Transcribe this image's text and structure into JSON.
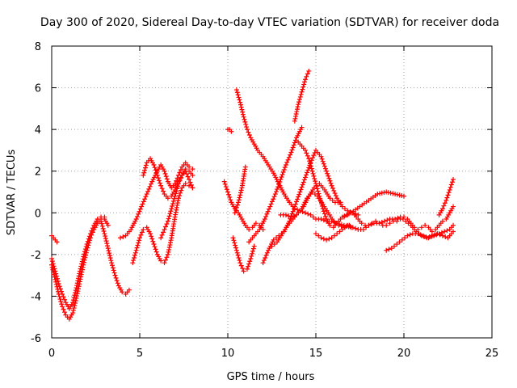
{
  "chart_data": {
    "type": "scatter",
    "title": "Day 300 of 2020, Sidereal Day-to-day VTEC variation (SDTVAR) for receiver doda",
    "xlabel": "GPS time / hours",
    "ylabel": "SDTVAR / TECUs",
    "xlim": [
      0,
      25
    ],
    "ylim": [
      -6,
      8
    ],
    "xticks": [
      0,
      5,
      10,
      15,
      20,
      25
    ],
    "yticks": [
      -6,
      -4,
      -2,
      0,
      2,
      4,
      6,
      8
    ],
    "xtick_labels": [
      "0",
      "5",
      "10",
      "15",
      "20",
      "25"
    ],
    "ytick_labels": [
      "-6",
      "-4",
      "-2",
      "0",
      "2",
      "4",
      "6",
      "8"
    ],
    "grid": true,
    "marker": "+",
    "color": "#ff0000",
    "series": [
      {
        "name": "trace-1",
        "x": [
          0.0,
          0.2,
          0.4,
          0.6,
          0.8,
          1.0,
          1.2,
          1.4,
          1.6,
          1.8,
          2.0,
          2.2,
          2.4,
          2.6,
          2.8,
          3.0,
          3.2
        ],
        "y": [
          -2.2,
          -2.8,
          -3.4,
          -3.9,
          -4.3,
          -4.6,
          -4.3,
          -3.6,
          -2.8,
          -2.1,
          -1.5,
          -1.0,
          -0.6,
          -0.3,
          -0.2,
          -0.3,
          -0.6
        ]
      },
      {
        "name": "trace-2",
        "x": [
          0.0,
          0.2,
          0.4,
          0.6,
          0.8,
          1.0,
          1.2,
          1.4,
          1.6,
          1.8,
          2.0,
          2.2,
          2.4,
          2.6,
          2.8,
          3.0
        ],
        "y": [
          -2.5,
          -3.2,
          -3.9,
          -4.5,
          -4.9,
          -5.1,
          -4.8,
          -4.1,
          -3.3,
          -2.5,
          -1.8,
          -1.2,
          -0.8,
          -0.5,
          -0.3,
          -0.2
        ]
      },
      {
        "name": "trace-3",
        "x": [
          0.0,
          0.1,
          0.2,
          0.3
        ],
        "y": [
          -1.1,
          -1.2,
          -1.3,
          -1.4
        ]
      },
      {
        "name": "trace-4",
        "x": [
          2.8,
          3.0,
          3.2,
          3.4,
          3.6,
          3.8,
          4.0,
          4.2,
          4.4
        ],
        "y": [
          -0.4,
          -1.0,
          -1.7,
          -2.4,
          -3.0,
          -3.5,
          -3.8,
          -3.9,
          -3.7
        ]
      },
      {
        "name": "trace-5",
        "x": [
          3.9,
          4.2,
          4.5,
          4.8,
          5.1,
          5.4,
          5.7,
          6.0,
          6.2,
          6.4,
          6.6,
          6.8,
          7.0,
          7.2,
          7.4,
          7.6,
          7.8,
          8.0
        ],
        "y": [
          -1.2,
          -1.1,
          -0.8,
          -0.3,
          0.3,
          0.9,
          1.5,
          2.0,
          2.3,
          2.0,
          1.5,
          1.2,
          1.4,
          1.8,
          2.2,
          2.4,
          2.2,
          2.1
        ]
      },
      {
        "name": "trace-6",
        "x": [
          5.2,
          5.4,
          5.6,
          5.8,
          6.0,
          6.2,
          6.4,
          6.6,
          6.8,
          7.0,
          7.2,
          7.4,
          7.6,
          7.8,
          8.0
        ],
        "y": [
          1.8,
          2.4,
          2.6,
          2.3,
          1.8,
          1.3,
          0.9,
          0.7,
          0.8,
          1.1,
          1.5,
          1.8,
          2.1,
          2.0,
          1.8
        ]
      },
      {
        "name": "trace-7",
        "x": [
          4.6,
          4.8,
          5.0,
          5.2,
          5.4,
          5.6,
          5.8,
          6.0,
          6.2,
          6.4,
          6.6,
          6.8,
          7.0,
          7.2,
          7.4,
          7.6,
          7.8,
          8.0
        ],
        "y": [
          -2.4,
          -1.8,
          -1.2,
          -0.8,
          -0.7,
          -1.0,
          -1.5,
          -2.0,
          -2.3,
          -2.4,
          -2.0,
          -1.2,
          -0.2,
          0.7,
          1.2,
          1.4,
          1.3,
          1.2
        ]
      },
      {
        "name": "trace-8",
        "x": [
          6.2,
          6.4,
          6.6,
          6.8,
          7.0,
          7.2,
          7.4,
          7.6,
          7.8,
          8.0
        ],
        "y": [
          -1.2,
          -0.8,
          -0.4,
          0.2,
          0.8,
          1.4,
          1.8,
          2.0,
          1.6,
          1.2
        ]
      },
      {
        "name": "trace-9",
        "x": [
          9.8,
          10.0,
          10.2,
          10.4,
          10.6,
          10.8,
          11.0,
          11.2,
          11.4,
          11.6,
          11.8,
          12.0
        ],
        "y": [
          1.5,
          1.0,
          0.5,
          0.2,
          0.0,
          -0.3,
          -0.6,
          -0.8,
          -0.7,
          -0.5,
          -0.6,
          -0.8
        ]
      },
      {
        "name": "trace-10",
        "x": [
          10.0,
          10.1,
          10.2
        ],
        "y": [
          4.0,
          4.0,
          3.9
        ]
      },
      {
        "name": "trace-11",
        "x": [
          10.5,
          10.7,
          10.9,
          11.1,
          11.3,
          11.5,
          11.7,
          12.0,
          12.3,
          12.6,
          12.9,
          13.2,
          13.5,
          13.8,
          14.1,
          14.4,
          14.7,
          15.0,
          15.3,
          15.6,
          15.9,
          16.2,
          16.6,
          17.0
        ],
        "y": [
          5.9,
          5.3,
          4.6,
          4.0,
          3.6,
          3.3,
          3.0,
          2.7,
          2.3,
          1.9,
          1.4,
          0.9,
          0.5,
          0.2,
          0.1,
          0.0,
          -0.1,
          -0.3,
          -0.3,
          -0.4,
          -0.4,
          -0.5,
          -0.6,
          -0.7
        ]
      },
      {
        "name": "trace-12",
        "x": [
          10.3,
          10.5,
          10.7,
          10.9,
          11.1,
          11.3,
          11.5
        ],
        "y": [
          -1.2,
          -1.8,
          -2.4,
          -2.8,
          -2.7,
          -2.2,
          -1.6
        ]
      },
      {
        "name": "trace-13",
        "x": [
          10.4,
          10.6,
          10.8,
          11.0
        ],
        "y": [
          0.0,
          0.5,
          1.2,
          2.2
        ]
      },
      {
        "name": "trace-14",
        "x": [
          11.2,
          11.5,
          11.8,
          12.1,
          12.4,
          12.7,
          13.0,
          13.3,
          13.6,
          13.9,
          14.2
        ],
        "y": [
          -1.4,
          -1.1,
          -0.8,
          -0.3,
          0.3,
          0.9,
          1.6,
          2.3,
          2.9,
          3.6,
          4.1
        ]
      },
      {
        "name": "trace-15",
        "x": [
          13.8,
          14.0,
          14.2,
          14.4,
          14.6
        ],
        "y": [
          4.4,
          5.2,
          5.8,
          6.4,
          6.8
        ]
      },
      {
        "name": "trace-16",
        "x": [
          12.0,
          12.3,
          12.6,
          12.9,
          13.2,
          13.5,
          13.8,
          14.1,
          14.4,
          14.7,
          15.0,
          15.3,
          15.6,
          15.9,
          16.2,
          16.5,
          16.8,
          17.1,
          17.4
        ],
        "y": [
          -2.4,
          -1.8,
          -1.3,
          -1.1,
          -0.9,
          -0.4,
          0.3,
          1.0,
          1.7,
          2.4,
          3.0,
          2.7,
          2.0,
          1.3,
          0.7,
          0.3,
          0.1,
          0.0,
          -0.1
        ]
      },
      {
        "name": "trace-17",
        "x": [
          12.5,
          12.8,
          13.1,
          13.4,
          13.7,
          14.0,
          14.3,
          14.6,
          14.9,
          15.2,
          15.5,
          15.8,
          16.1,
          16.4
        ],
        "y": [
          -1.6,
          -1.4,
          -1.0,
          -0.6,
          -0.3,
          0.0,
          0.3,
          0.8,
          1.2,
          1.4,
          1.1,
          0.7,
          0.5,
          0.5
        ]
      },
      {
        "name": "trace-18",
        "x": [
          13.0,
          13.3,
          13.6,
          13.9,
          14.2,
          14.5,
          14.8,
          15.1,
          15.4,
          15.7,
          16.0,
          16.3,
          16.6,
          16.9
        ],
        "y": [
          -0.1,
          -0.1,
          -0.2,
          -0.1,
          0.2,
          0.7,
          1.0,
          0.8,
          0.4,
          0.0,
          -0.4,
          -0.6,
          -0.7,
          -0.6
        ]
      },
      {
        "name": "trace-19",
        "x": [
          14.0,
          14.2,
          14.4,
          14.6,
          14.8,
          15.0,
          15.2,
          15.4,
          15.6,
          15.8,
          16.0,
          16.2,
          16.4,
          16.6,
          16.8,
          17.0,
          17.2,
          17.4,
          17.6,
          17.8,
          18.0,
          18.2,
          18.4,
          18.6,
          18.8,
          19.0,
          19.2,
          19.4,
          19.6,
          19.8,
          20.0,
          20.2,
          20.4,
          20.6,
          20.8,
          21.0,
          21.2,
          21.4,
          21.6,
          21.8,
          22.0,
          22.2,
          22.4,
          22.6,
          22.8
        ],
        "y": [
          3.4,
          3.2,
          3.0,
          2.6,
          2.0,
          1.4,
          0.8,
          0.2,
          -0.3,
          -0.6,
          -0.7,
          -0.5,
          -0.3,
          -0.2,
          -0.1,
          0.0,
          -0.1,
          -0.3,
          -0.5,
          -0.6,
          -0.6,
          -0.5,
          -0.4,
          -0.5,
          -0.6,
          -0.6,
          -0.5,
          -0.4,
          -0.4,
          -0.3,
          -0.2,
          -0.3,
          -0.5,
          -0.7,
          -0.8,
          -0.7,
          -0.6,
          -0.7,
          -0.9,
          -0.8,
          -0.6,
          -0.4,
          -0.3,
          0.0,
          0.3
        ]
      },
      {
        "name": "trace-20",
        "x": [
          15.0,
          15.3,
          15.6,
          15.9,
          16.2,
          16.5,
          16.8,
          17.1,
          17.4,
          17.7,
          18.0,
          18.3,
          18.6,
          18.9,
          19.2,
          19.5,
          19.8,
          20.1,
          20.4,
          20.7,
          21.0,
          21.3,
          21.6,
          21.9,
          22.2,
          22.5,
          22.8
        ],
        "y": [
          -1.0,
          -1.2,
          -1.3,
          -1.2,
          -1.0,
          -0.8,
          -0.6,
          -0.7,
          -0.8,
          -0.8,
          -0.6,
          -0.5,
          -0.5,
          -0.4,
          -0.3,
          -0.3,
          -0.2,
          -0.4,
          -0.6,
          -0.9,
          -1.1,
          -1.2,
          -1.1,
          -1.0,
          -1.1,
          -1.2,
          -0.9
        ]
      },
      {
        "name": "trace-21",
        "x": [
          16.5,
          17.0,
          17.5,
          18.0,
          18.5,
          19.0,
          19.5,
          20.0
        ],
        "y": [
          -0.2,
          0.0,
          0.3,
          0.6,
          0.9,
          1.0,
          0.9,
          0.8
        ]
      },
      {
        "name": "trace-22",
        "x": [
          19.0,
          19.3,
          19.6,
          19.9,
          20.2,
          20.5,
          20.8,
          21.1,
          21.4,
          21.7,
          22.0,
          22.3,
          22.6,
          22.8
        ],
        "y": [
          -1.8,
          -1.7,
          -1.5,
          -1.3,
          -1.1,
          -1.0,
          -1.0,
          -1.1,
          -1.2,
          -1.1,
          -1.0,
          -0.9,
          -0.8,
          -0.6
        ]
      },
      {
        "name": "trace-23",
        "x": [
          22.0,
          22.2,
          22.4,
          22.6,
          22.8
        ],
        "y": [
          -0.1,
          0.2,
          0.6,
          1.1,
          1.6
        ]
      }
    ]
  }
}
